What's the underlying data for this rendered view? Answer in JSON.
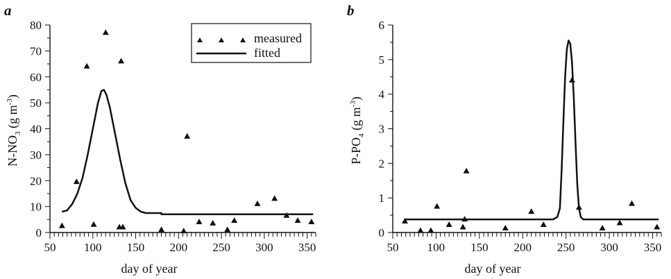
{
  "chart_data": [
    {
      "type": "scatter",
      "panel_label": "a",
      "xlabel": "day of year",
      "ylabel_main": "N-NO",
      "ylabel_sub": "3",
      "ylabel_unit": " (g m",
      "ylabel_sup": "-3",
      "ylabel_close": ")",
      "xlim": [
        50,
        360
      ],
      "ylim": [
        0,
        80
      ],
      "xticks": [
        50,
        100,
        150,
        200,
        250,
        300,
        350
      ],
      "yticks": [
        0,
        10,
        20,
        30,
        40,
        50,
        60,
        70,
        80
      ],
      "grid": false,
      "legend": {
        "placement": "top-right",
        "entries": [
          {
            "label": "measured",
            "marker": "triangle"
          },
          {
            "label": "fitted",
            "marker": "line"
          }
        ]
      },
      "series": [
        {
          "name": "measured",
          "kind": "markers",
          "points": [
            [
              64,
              2.5
            ],
            [
              81,
              19.5
            ],
            [
              93,
              64
            ],
            [
              101,
              3
            ],
            [
              115,
              77
            ],
            [
              131,
              2
            ],
            [
              133,
              66
            ],
            [
              135,
              2
            ],
            [
              180,
              1
            ],
            [
              206,
              0.5
            ],
            [
              210,
              37
            ],
            [
              224,
              4
            ],
            [
              240,
              3.5
            ],
            [
              257,
              1
            ],
            [
              265,
              4.5
            ],
            [
              292,
              11
            ],
            [
              312,
              13
            ],
            [
              326,
              6.5
            ],
            [
              339,
              4.5
            ],
            [
              355,
              4
            ]
          ]
        },
        {
          "name": "fitted",
          "kind": "line",
          "points": [
            [
              64,
              8
            ],
            [
              70,
              8.5
            ],
            [
              76,
              11
            ],
            [
              82,
              15
            ],
            [
              88,
              21
            ],
            [
              94,
              30
            ],
            [
              100,
              40
            ],
            [
              106,
              50
            ],
            [
              110,
              54.5
            ],
            [
              113,
              55
            ],
            [
              116,
              53
            ],
            [
              120,
              48
            ],
            [
              126,
              38
            ],
            [
              132,
              28
            ],
            [
              138,
              19
            ],
            [
              144,
              12.5
            ],
            [
              150,
              9.5
            ],
            [
              156,
              8
            ],
            [
              162,
              7.5
            ],
            [
              180,
              7.5
            ],
            [
              180,
              7
            ],
            [
              357,
              7
            ]
          ]
        }
      ]
    },
    {
      "type": "scatter",
      "panel_label": "b",
      "xlabel": "day of year",
      "ylabel_main": "P-PO",
      "ylabel_sub": "4",
      "ylabel_unit": " (g m",
      "ylabel_sup": "-3",
      "ylabel_close": ")",
      "xlim": [
        50,
        360
      ],
      "ylim": [
        0,
        6
      ],
      "xticks": [
        50,
        100,
        150,
        200,
        250,
        300,
        350
      ],
      "yticks": [
        0,
        1,
        2,
        3,
        4,
        5,
        6
      ],
      "grid": false,
      "series": [
        {
          "name": "measured",
          "kind": "markers",
          "points": [
            [
              64,
              0.32
            ],
            [
              82,
              0.05
            ],
            [
              94,
              0.05
            ],
            [
              101,
              0.75
            ],
            [
              115,
              0.22
            ],
            [
              131,
              0.15
            ],
            [
              133,
              0.38
            ],
            [
              135,
              1.77
            ],
            [
              180,
              0.12
            ],
            [
              210,
              0.6
            ],
            [
              224,
              0.22
            ],
            [
              257,
              4.4
            ],
            [
              265,
              0.72
            ],
            [
              292,
              0.12
            ],
            [
              312,
              0.27
            ],
            [
              326,
              0.83
            ],
            [
              355,
              0.15
            ]
          ]
        },
        {
          "name": "fitted",
          "kind": "line",
          "points": [
            [
              64,
              0.38
            ],
            [
              235,
              0.38
            ],
            [
              240,
              0.45
            ],
            [
              243,
              0.7
            ],
            [
              245,
              1.8
            ],
            [
              247,
              3.2
            ],
            [
              249,
              4.5
            ],
            [
              251,
              5.3
            ],
            [
              253,
              5.55
            ],
            [
              255,
              5.45
            ],
            [
              257,
              4.9
            ],
            [
              259,
              3.9
            ],
            [
              261,
              2.6
            ],
            [
              263,
              1.4
            ],
            [
              265,
              0.7
            ],
            [
              267,
              0.45
            ],
            [
              270,
              0.38
            ],
            [
              357,
              0.38
            ]
          ]
        }
      ]
    }
  ]
}
